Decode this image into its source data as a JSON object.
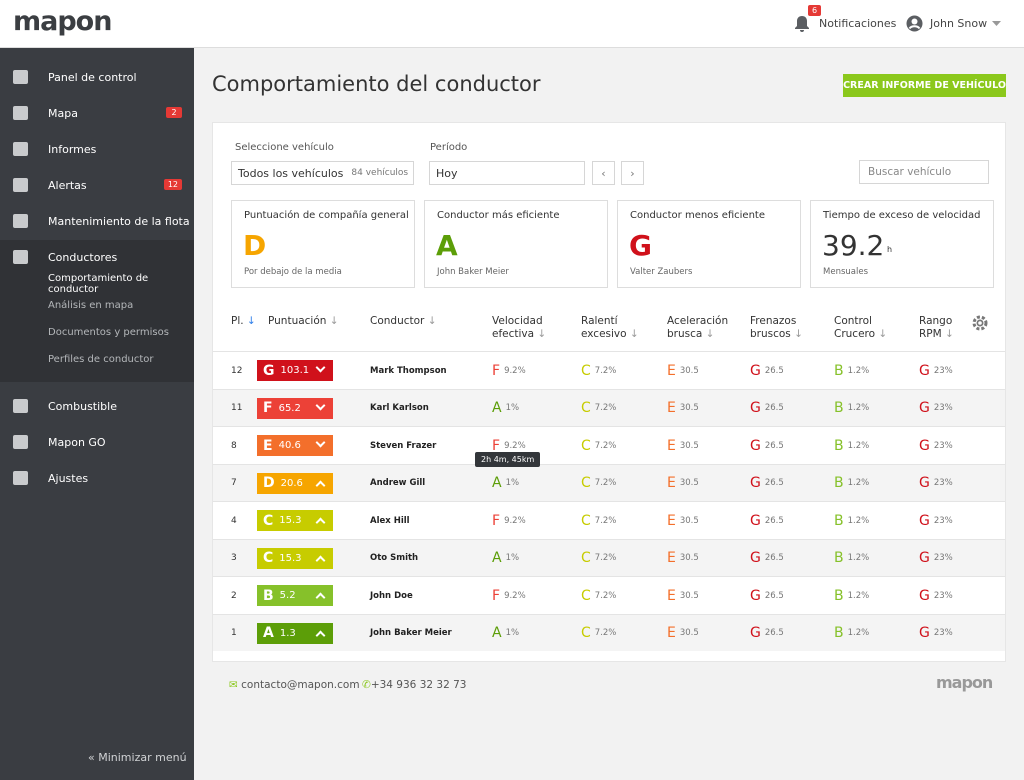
{
  "header": {
    "logo": "mapon",
    "notifications_count": 6,
    "notifications_label": "Notificaciones",
    "user": "John Snow"
  },
  "sidebar": {
    "items": [
      {
        "label": "Panel de control"
      },
      {
        "label": "Mapa",
        "badge": 2
      },
      {
        "label": "Informes"
      },
      {
        "label": "Alertas",
        "badge": 12
      },
      {
        "label": "Mantenimiento de la flota"
      },
      {
        "label": "Conductores",
        "subitems": [
          "Comportamiento de conductor",
          "Análisis en mapa",
          "Documentos y permisos",
          "Perfiles de conductor"
        ]
      },
      {
        "label": "Combustible"
      },
      {
        "label": "Mapon GO"
      },
      {
        "label": "Ajustes"
      }
    ],
    "minimize": "Minimizar menú"
  },
  "page": {
    "title": "Comportamiento del conductor",
    "button": "CREAR INFORME DE VEHÍCULO"
  },
  "filters": {
    "vehicle_label": "Seleccione vehículo",
    "vehicle_value": "Todos los vehículos",
    "vehicle_count": "84 vehículos",
    "period_label": "Período",
    "period_value": "Hoy",
    "search_placeholder": "Buscar vehículo"
  },
  "cards": [
    {
      "label": "Puntuación de compañía general",
      "value": "D",
      "note": "Por debajo de la media"
    },
    {
      "label": "Conductor más eficiente",
      "value": "A",
      "note": "John Baker Meier"
    },
    {
      "label": "Conductor menos eficiente",
      "value": "G",
      "note": "Valter Zaubers"
    },
    {
      "label": "Tiempo de exceso de velocidad",
      "value": 39.2,
      "unit": "h",
      "note": "Mensuales"
    }
  ],
  "table": {
    "columns": [
      "Pl.",
      "Puntuación",
      "Conductor",
      "Velocidad efectiva",
      "Ralentí excesivo",
      "Aceleración brusca",
      "Frenazos bruscos",
      "Control Crucero",
      "Rango RPM"
    ],
    "rows": [
      {
        "place": 12,
        "grade": "G",
        "score": 103.1,
        "driver": "Mark Thompson",
        "metrics": [
          [
            "F",
            "9.2%"
          ],
          [
            "C",
            "7.2%"
          ],
          [
            "E",
            30.5
          ],
          [
            "G",
            26.5
          ],
          [
            "B",
            "1.2%"
          ],
          [
            "G",
            "23%"
          ]
        ]
      },
      {
        "place": 11,
        "grade": "F",
        "score": 65.2,
        "driver": "Karl Karlson",
        "metrics": [
          [
            "A",
            "1%"
          ],
          [
            "C",
            "7.2%"
          ],
          [
            "E",
            30.5
          ],
          [
            "G",
            26.5
          ],
          [
            "B",
            "1.2%"
          ],
          [
            "G",
            "23%"
          ]
        ]
      },
      {
        "place": 8,
        "grade": "E",
        "score": 40.6,
        "driver": "Steven Frazer",
        "metrics": [
          [
            "F",
            "9.2%"
          ],
          [
            "C",
            "7.2%"
          ],
          [
            "E",
            30.5
          ],
          [
            "G",
            26.5
          ],
          [
            "B",
            "1.2%"
          ],
          [
            "G",
            "23%"
          ]
        ]
      },
      {
        "place": 7,
        "grade": "D",
        "score": 20.6,
        "driver": "Andrew Gill",
        "metrics": [
          [
            "A",
            "1%"
          ],
          [
            "C",
            "7.2%"
          ],
          [
            "E",
            30.5
          ],
          [
            "G",
            26.5
          ],
          [
            "B",
            "1.2%"
          ],
          [
            "G",
            "23%"
          ]
        ]
      },
      {
        "place": 4,
        "grade": "C",
        "score": 15.3,
        "driver": "Alex Hill",
        "metrics": [
          [
            "F",
            "9.2%"
          ],
          [
            "C",
            "7.2%"
          ],
          [
            "E",
            30.5
          ],
          [
            "G",
            26.5
          ],
          [
            "B",
            "1.2%"
          ],
          [
            "G",
            "23%"
          ]
        ]
      },
      {
        "place": 3,
        "grade": "C",
        "score": 15.3,
        "driver": "Oto Smith",
        "metrics": [
          [
            "A",
            "1%"
          ],
          [
            "C",
            "7.2%"
          ],
          [
            "E",
            30.5
          ],
          [
            "G",
            26.5
          ],
          [
            "B",
            "1.2%"
          ],
          [
            "G",
            "23%"
          ]
        ]
      },
      {
        "place": 2,
        "grade": "B",
        "score": 5.2,
        "driver": "John Doe",
        "metrics": [
          [
            "F",
            "9.2%"
          ],
          [
            "C",
            "7.2%"
          ],
          [
            "E",
            30.5
          ],
          [
            "G",
            26.5
          ],
          [
            "B",
            "1.2%"
          ],
          [
            "G",
            "23%"
          ]
        ]
      },
      {
        "place": 1,
        "grade": "A",
        "score": 1.3,
        "driver": "John Baker Meier",
        "metrics": [
          [
            "A",
            "1%"
          ],
          [
            "C",
            "7.2%"
          ],
          [
            "E",
            30.5
          ],
          [
            "G",
            26.5
          ],
          [
            "B",
            "1.2%"
          ],
          [
            "G",
            "23%"
          ]
        ]
      }
    ],
    "tooltip": "2h 4m, 45km"
  },
  "footer": {
    "email": "contacto@mapon.com",
    "phone": "+34 936 32 32 73",
    "logo": "mapon"
  }
}
